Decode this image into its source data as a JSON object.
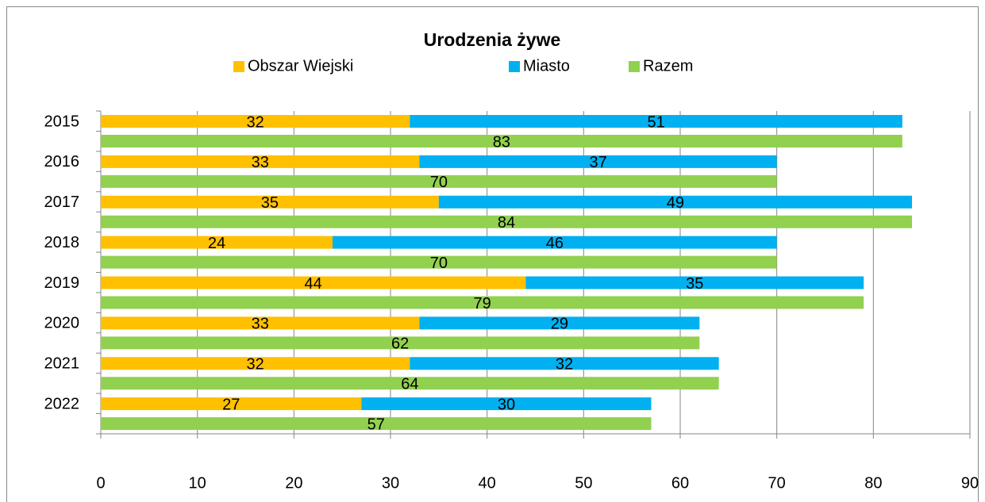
{
  "chart_data": {
    "type": "bar",
    "orientation": "horizontal",
    "title": "Urodzenia żywe",
    "categories": [
      "2015",
      "2016",
      "2017",
      "2018",
      "2019",
      "2020",
      "2021",
      "2022"
    ],
    "series": [
      {
        "name": "Obszar Wiejski",
        "color": "#FFC000",
        "values": [
          32,
          33,
          35,
          24,
          44,
          33,
          32,
          27
        ]
      },
      {
        "name": "Miasto",
        "color": "#00B0F0",
        "values": [
          51,
          37,
          49,
          46,
          35,
          29,
          32,
          30
        ]
      },
      {
        "name": "Razem",
        "color": "#92D050",
        "values": [
          83,
          70,
          84,
          70,
          79,
          62,
          64,
          57
        ]
      }
    ],
    "xlim": [
      0,
      90
    ],
    "xticks": [
      0,
      10,
      20,
      30,
      40,
      50,
      60,
      70,
      80,
      90
    ],
    "grid": true,
    "legend": "top"
  }
}
